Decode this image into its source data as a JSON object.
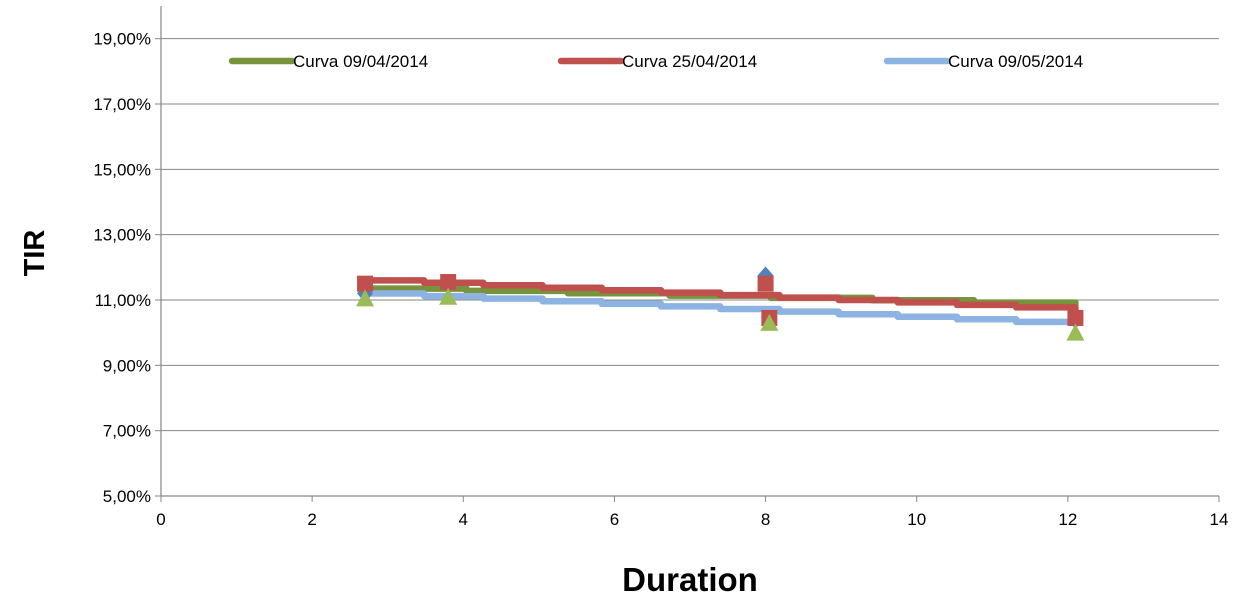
{
  "chart_data": {
    "type": "line",
    "title": "",
    "xlabel": "Duration",
    "ylabel": "TIR",
    "xlim": [
      0,
      14
    ],
    "ylim": [
      5,
      20
    ],
    "x_ticks": [
      0,
      2,
      4,
      6,
      8,
      10,
      12,
      14
    ],
    "y_ticks": [
      5,
      7,
      9,
      11,
      13,
      15,
      17,
      19
    ],
    "x_tick_labels": [
      "0",
      "2",
      "4",
      "6",
      "8",
      "10",
      "12",
      "14"
    ],
    "y_tick_labels": [
      "5,00%",
      "7,00%",
      "9,00%",
      "11,00%",
      "13,00%",
      "15,00%",
      "17,00%",
      "19,00%"
    ],
    "grid": "horizontal",
    "legend_position": "top",
    "series": [
      {
        "name": "Curva 09/04/2014",
        "kind": "curve",
        "color": "#77933C",
        "x": [
          2.7,
          12.1
        ],
        "y": [
          11.35,
          10.85
        ]
      },
      {
        "name": "Curva 25/04/2014",
        "kind": "curve",
        "color": "#C0504D",
        "x": [
          2.7,
          12.1
        ],
        "y": [
          11.6,
          10.7
        ]
      },
      {
        "name": "Curva 09/05/2014",
        "kind": "curve",
        "color": "#8DB3E2",
        "x": [
          2.7,
          12.1
        ],
        "y": [
          11.2,
          10.25
        ]
      }
    ],
    "markers": [
      {
        "name": "diamond-markers",
        "shape": "diamond",
        "color": "#4F81BD",
        "x": [
          2.7,
          8.0
        ],
        "y": [
          11.2,
          11.75
        ]
      },
      {
        "name": "square-markers",
        "shape": "square",
        "color": "#C0504D",
        "x": [
          2.7,
          3.8,
          8.0,
          8.05,
          12.1
        ],
        "y": [
          11.5,
          11.55,
          11.5,
          10.45,
          10.45
        ]
      },
      {
        "name": "triangle-markers",
        "shape": "triangle",
        "color": "#9BBB59",
        "x": [
          2.7,
          3.8,
          8.05,
          12.1
        ],
        "y": [
          11.05,
          11.1,
          10.3,
          10.0
        ]
      }
    ]
  }
}
